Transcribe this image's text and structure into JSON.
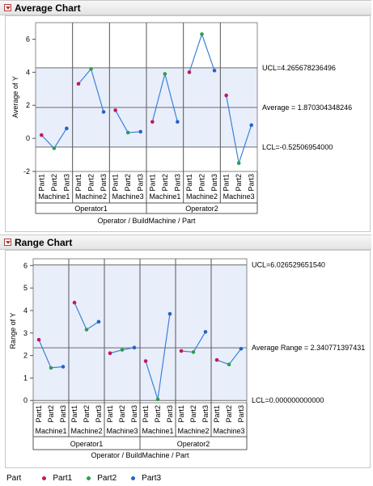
{
  "average_header": {
    "title": "Average Chart"
  },
  "range_header": {
    "title": "Range Chart"
  },
  "colors": {
    "Part1": "#c2185b",
    "Part2": "#2e9e4f",
    "Part3": "#2563c7",
    "line": "#3b82d6",
    "band": "#e9eefb"
  },
  "legend": {
    "title": "Part",
    "items": [
      {
        "label": "Part1",
        "color": "#c2185b"
      },
      {
        "label": "Part2",
        "color": "#2e9e4f"
      },
      {
        "label": "Part3",
        "color": "#2563c7"
      }
    ]
  },
  "chart_data": [
    {
      "type": "line",
      "title": "Average Chart",
      "ylabel": "Average of Y",
      "xlabel": "Operator  /  BuildMachine / Part",
      "ylim": [
        -2,
        7
      ],
      "yticks": [
        "6",
        "4",
        "2",
        "0",
        "-2"
      ],
      "operators": [
        "Operator1",
        "Operator2"
      ],
      "machines": [
        "Machine1",
        "Machine2",
        "Machine3",
        "Machine1",
        "Machine2",
        "Machine3"
      ],
      "parts": [
        "Part1",
        "Part2",
        "Part3"
      ],
      "values": [
        [
          0.2,
          -0.6,
          0.6
        ],
        [
          3.3,
          4.2,
          1.6
        ],
        [
          1.7,
          0.35,
          0.4
        ],
        [
          1.0,
          3.9,
          1.0
        ],
        [
          4.0,
          6.3,
          4.1
        ],
        [
          2.6,
          -1.5,
          0.8
        ]
      ],
      "ucl": 4.265678236496,
      "center": 1.870304348246,
      "lcl": -0.52506954,
      "ucl_label": "UCL=4.265678236496",
      "center_label": "Average = 1.870304348246",
      "lcl_label": "LCL=-0.52506954000"
    },
    {
      "type": "line",
      "title": "Range Chart",
      "ylabel": "Range of Y",
      "xlabel": "Operator  /  BuildMachine / Part",
      "ylim": [
        -0.1,
        6.3
      ],
      "yticks": [
        "6",
        "5",
        "4",
        "3",
        "2",
        "1",
        "0"
      ],
      "operators": [
        "Operator1",
        "Operator2"
      ],
      "machines": [
        "Machine1",
        "Machine2",
        "Machine3",
        "Machine1",
        "Machine2",
        "Machine3"
      ],
      "parts": [
        "Part1",
        "Part2",
        "Part3"
      ],
      "values": [
        [
          2.7,
          1.45,
          1.5
        ],
        [
          4.35,
          3.15,
          3.5
        ],
        [
          2.1,
          2.25,
          2.35
        ],
        [
          1.75,
          0.05,
          3.85
        ],
        [
          2.2,
          2.15,
          3.05
        ],
        [
          1.8,
          1.6,
          2.3
        ]
      ],
      "ucl": 6.02652965154,
      "center": 2.340771397431,
      "lcl": 0.0,
      "ucl_label": "UCL=6.026529651540",
      "center_label": "Average Range = 2.340771397431",
      "lcl_label": "LCL=0.000000000000"
    }
  ]
}
